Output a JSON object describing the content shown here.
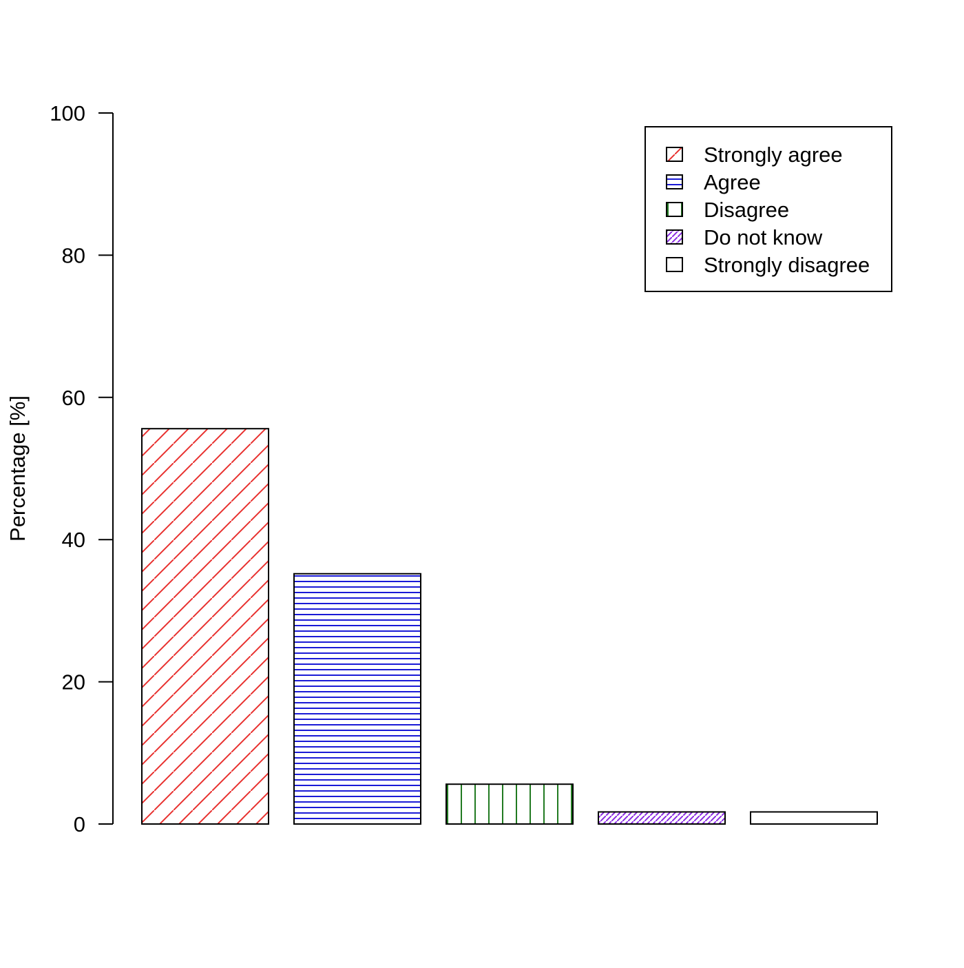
{
  "chart_data": {
    "type": "bar",
    "title": "",
    "xlabel": "",
    "ylabel": "Percentage [%]",
    "ylim": [
      0,
      100
    ],
    "yticks": [
      0,
      20,
      40,
      60,
      80,
      100
    ],
    "grid": false,
    "legend_position": "top-right",
    "categories": [
      "Strongly agree",
      "Agree",
      "Disagree",
      "Do not know",
      "Strongly disagree"
    ],
    "values": [
      55.6,
      35.2,
      5.6,
      1.7,
      1.7
    ],
    "colors": [
      "#e8302e",
      "#1a1ad6",
      "#217a21",
      "#8a2be2",
      "#f08c00"
    ],
    "patterns": [
      "diagonal-wide",
      "horizontal-dense",
      "vertical-wide",
      "diagonal-dense",
      "none"
    ]
  }
}
